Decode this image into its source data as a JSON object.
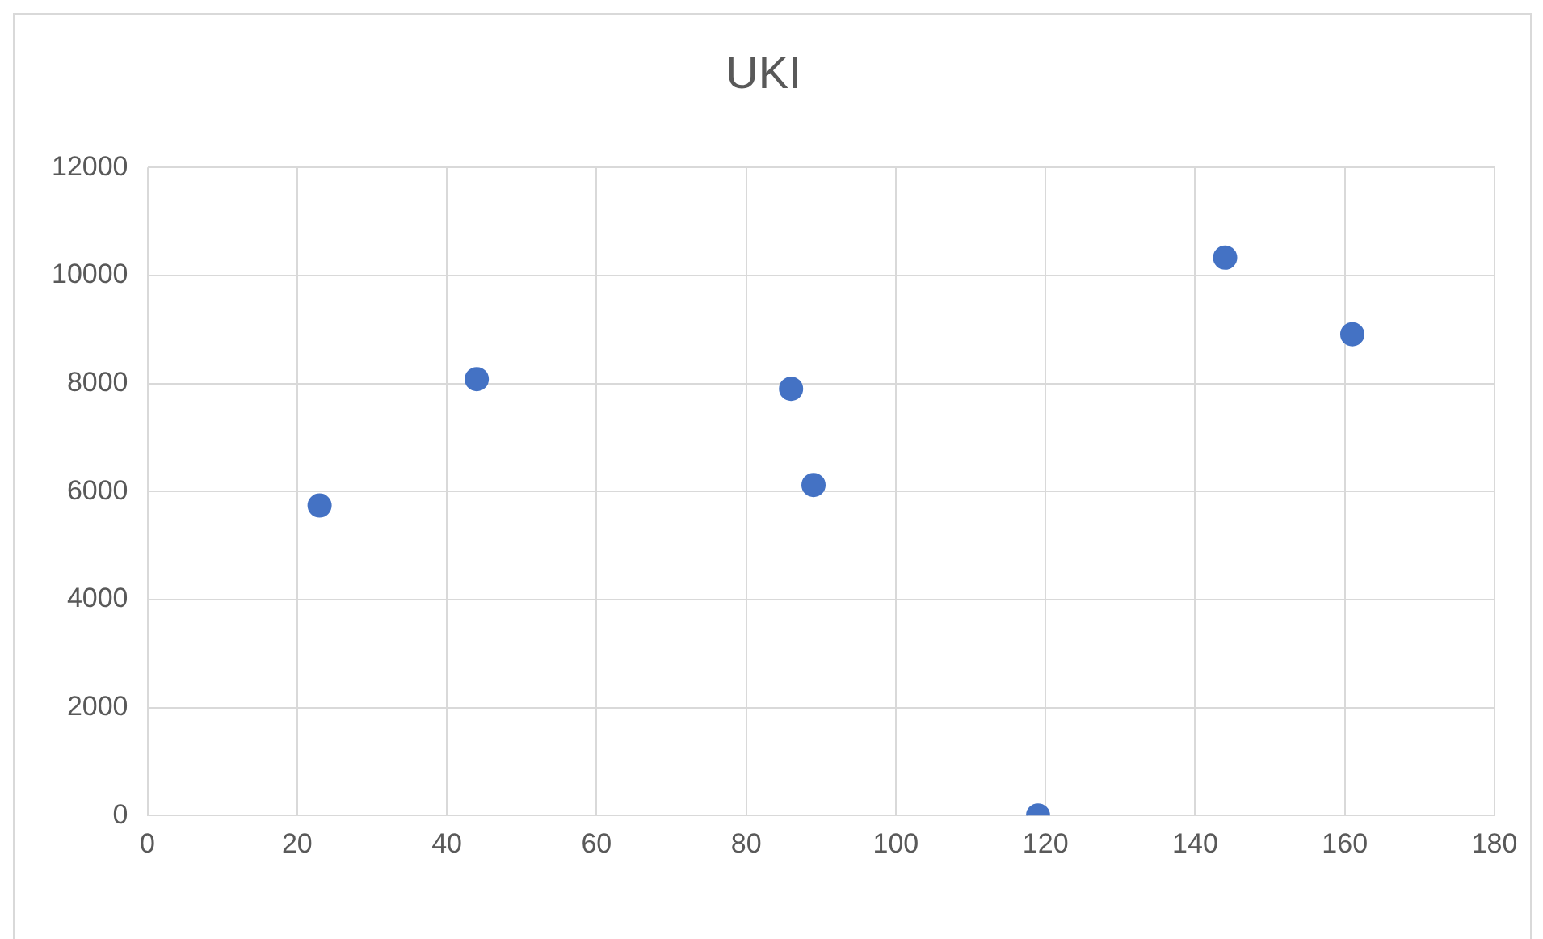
{
  "chart_data": {
    "type": "scatter",
    "title": "UKI",
    "series": [
      {
        "color": "#4472c4",
        "x": [
          23,
          44,
          86,
          89,
          119,
          144,
          161
        ],
        "values": [
          5740,
          8080,
          7900,
          6120,
          0,
          10330,
          8910
        ]
      }
    ],
    "xlim": [
      0,
      180
    ],
    "xticks": [
      0,
      20,
      40,
      60,
      80,
      100,
      120,
      140,
      160,
      180
    ],
    "ylim": [
      0,
      12000
    ],
    "yticks": [
      0,
      2000,
      4000,
      6000,
      8000,
      10000,
      12000
    ],
    "grid": true,
    "marker": "circle",
    "legend": false
  }
}
